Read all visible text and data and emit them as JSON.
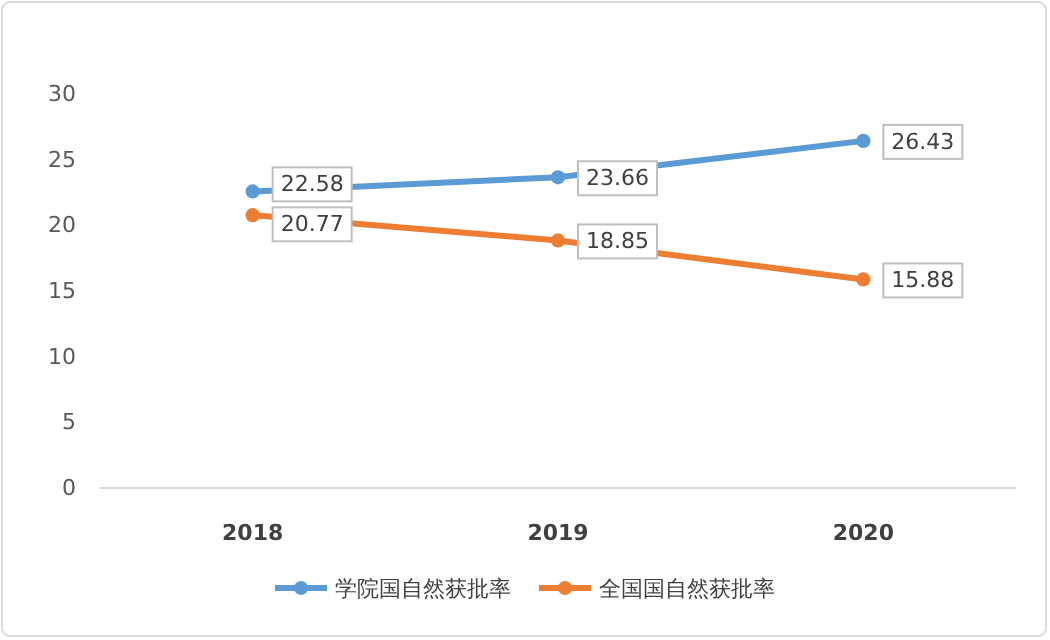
{
  "chart_data": {
    "type": "line",
    "categories": [
      "2018",
      "2019",
      "2020"
    ],
    "series": [
      {
        "name": "学院国自然获批率",
        "color": "#5b9bd5",
        "values": [
          22.58,
          23.66,
          26.43
        ]
      },
      {
        "name": "全国国自然获批率",
        "color": "#ed7d31",
        "values": [
          20.77,
          18.85,
          15.88
        ]
      }
    ],
    "ylim": [
      0,
      30
    ],
    "yticks": [
      0,
      5,
      10,
      15,
      20,
      25,
      30
    ],
    "data_labels": true,
    "legend": "bottom",
    "marker": "circle",
    "line_style": "solid",
    "grid": false
  }
}
